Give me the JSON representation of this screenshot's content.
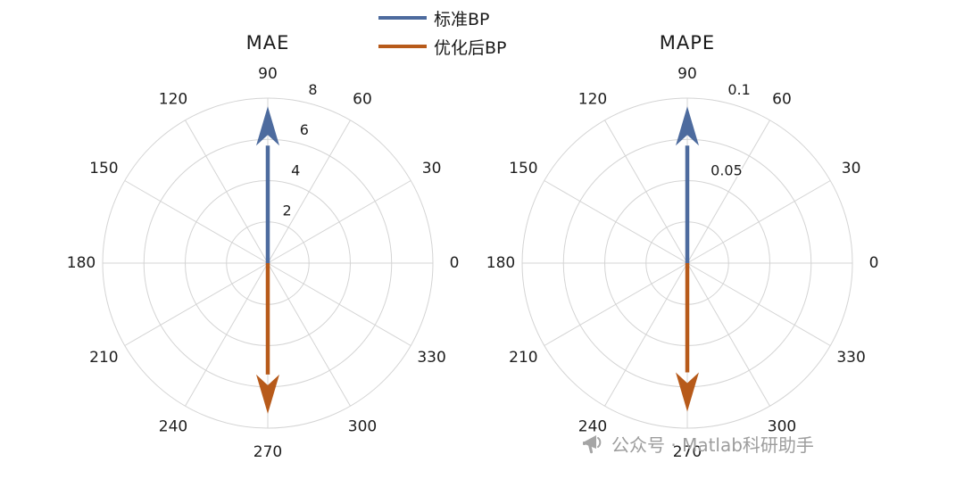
{
  "figure": {
    "background": "#ffffff"
  },
  "legend": {
    "items": [
      {
        "label": "标准BP",
        "color": "#4d6b9e"
      },
      {
        "label": "优化后BP",
        "color": "#b75a1a"
      }
    ]
  },
  "watermark": {
    "icon": "megaphone-icon",
    "text": "公众号 · Matlab科研助手",
    "color": "#9d9d9d"
  },
  "style": {
    "grid_color": "#d4d4d4",
    "tick_text_color": "#1d1d1d"
  },
  "chart_data": [
    {
      "type": "polar",
      "title": "MAE",
      "angular_ticks": [
        0,
        30,
        60,
        90,
        120,
        150,
        180,
        210,
        240,
        270,
        300,
        330
      ],
      "rings": [
        2,
        4,
        6,
        8
      ],
      "radial_tick_labels": [
        {
          "value": 2,
          "label": "2"
        },
        {
          "value": 4,
          "label": "4"
        },
        {
          "value": 6,
          "label": "6"
        },
        {
          "value": 8,
          "label": "8"
        }
      ],
      "rlim": [
        0,
        8
      ],
      "grid": true,
      "legend_position": "top-center",
      "series": [
        {
          "name": "标准BP",
          "angle_deg": 90,
          "value": 7.6,
          "color": "#4d6b9e"
        },
        {
          "name": "优化后BP",
          "angle_deg": 270,
          "value": 7.3,
          "color": "#b75a1a"
        }
      ]
    },
    {
      "type": "polar",
      "title": "MAPE",
      "angular_ticks": [
        0,
        30,
        60,
        90,
        120,
        150,
        180,
        210,
        240,
        270,
        300,
        330
      ],
      "rings": [
        0.025,
        0.05,
        0.075,
        0.1
      ],
      "radial_tick_labels": [
        {
          "value": 0.05,
          "label": "0.05"
        },
        {
          "value": 0.1,
          "label": "0.1"
        }
      ],
      "rlim": [
        0,
        0.1
      ],
      "grid": true,
      "legend_position": "top-center",
      "series": [
        {
          "name": "标准BP",
          "angle_deg": 90,
          "value": 0.095,
          "color": "#4d6b9e"
        },
        {
          "name": "优化后BP",
          "angle_deg": 270,
          "value": 0.09,
          "color": "#b75a1a"
        }
      ]
    }
  ]
}
